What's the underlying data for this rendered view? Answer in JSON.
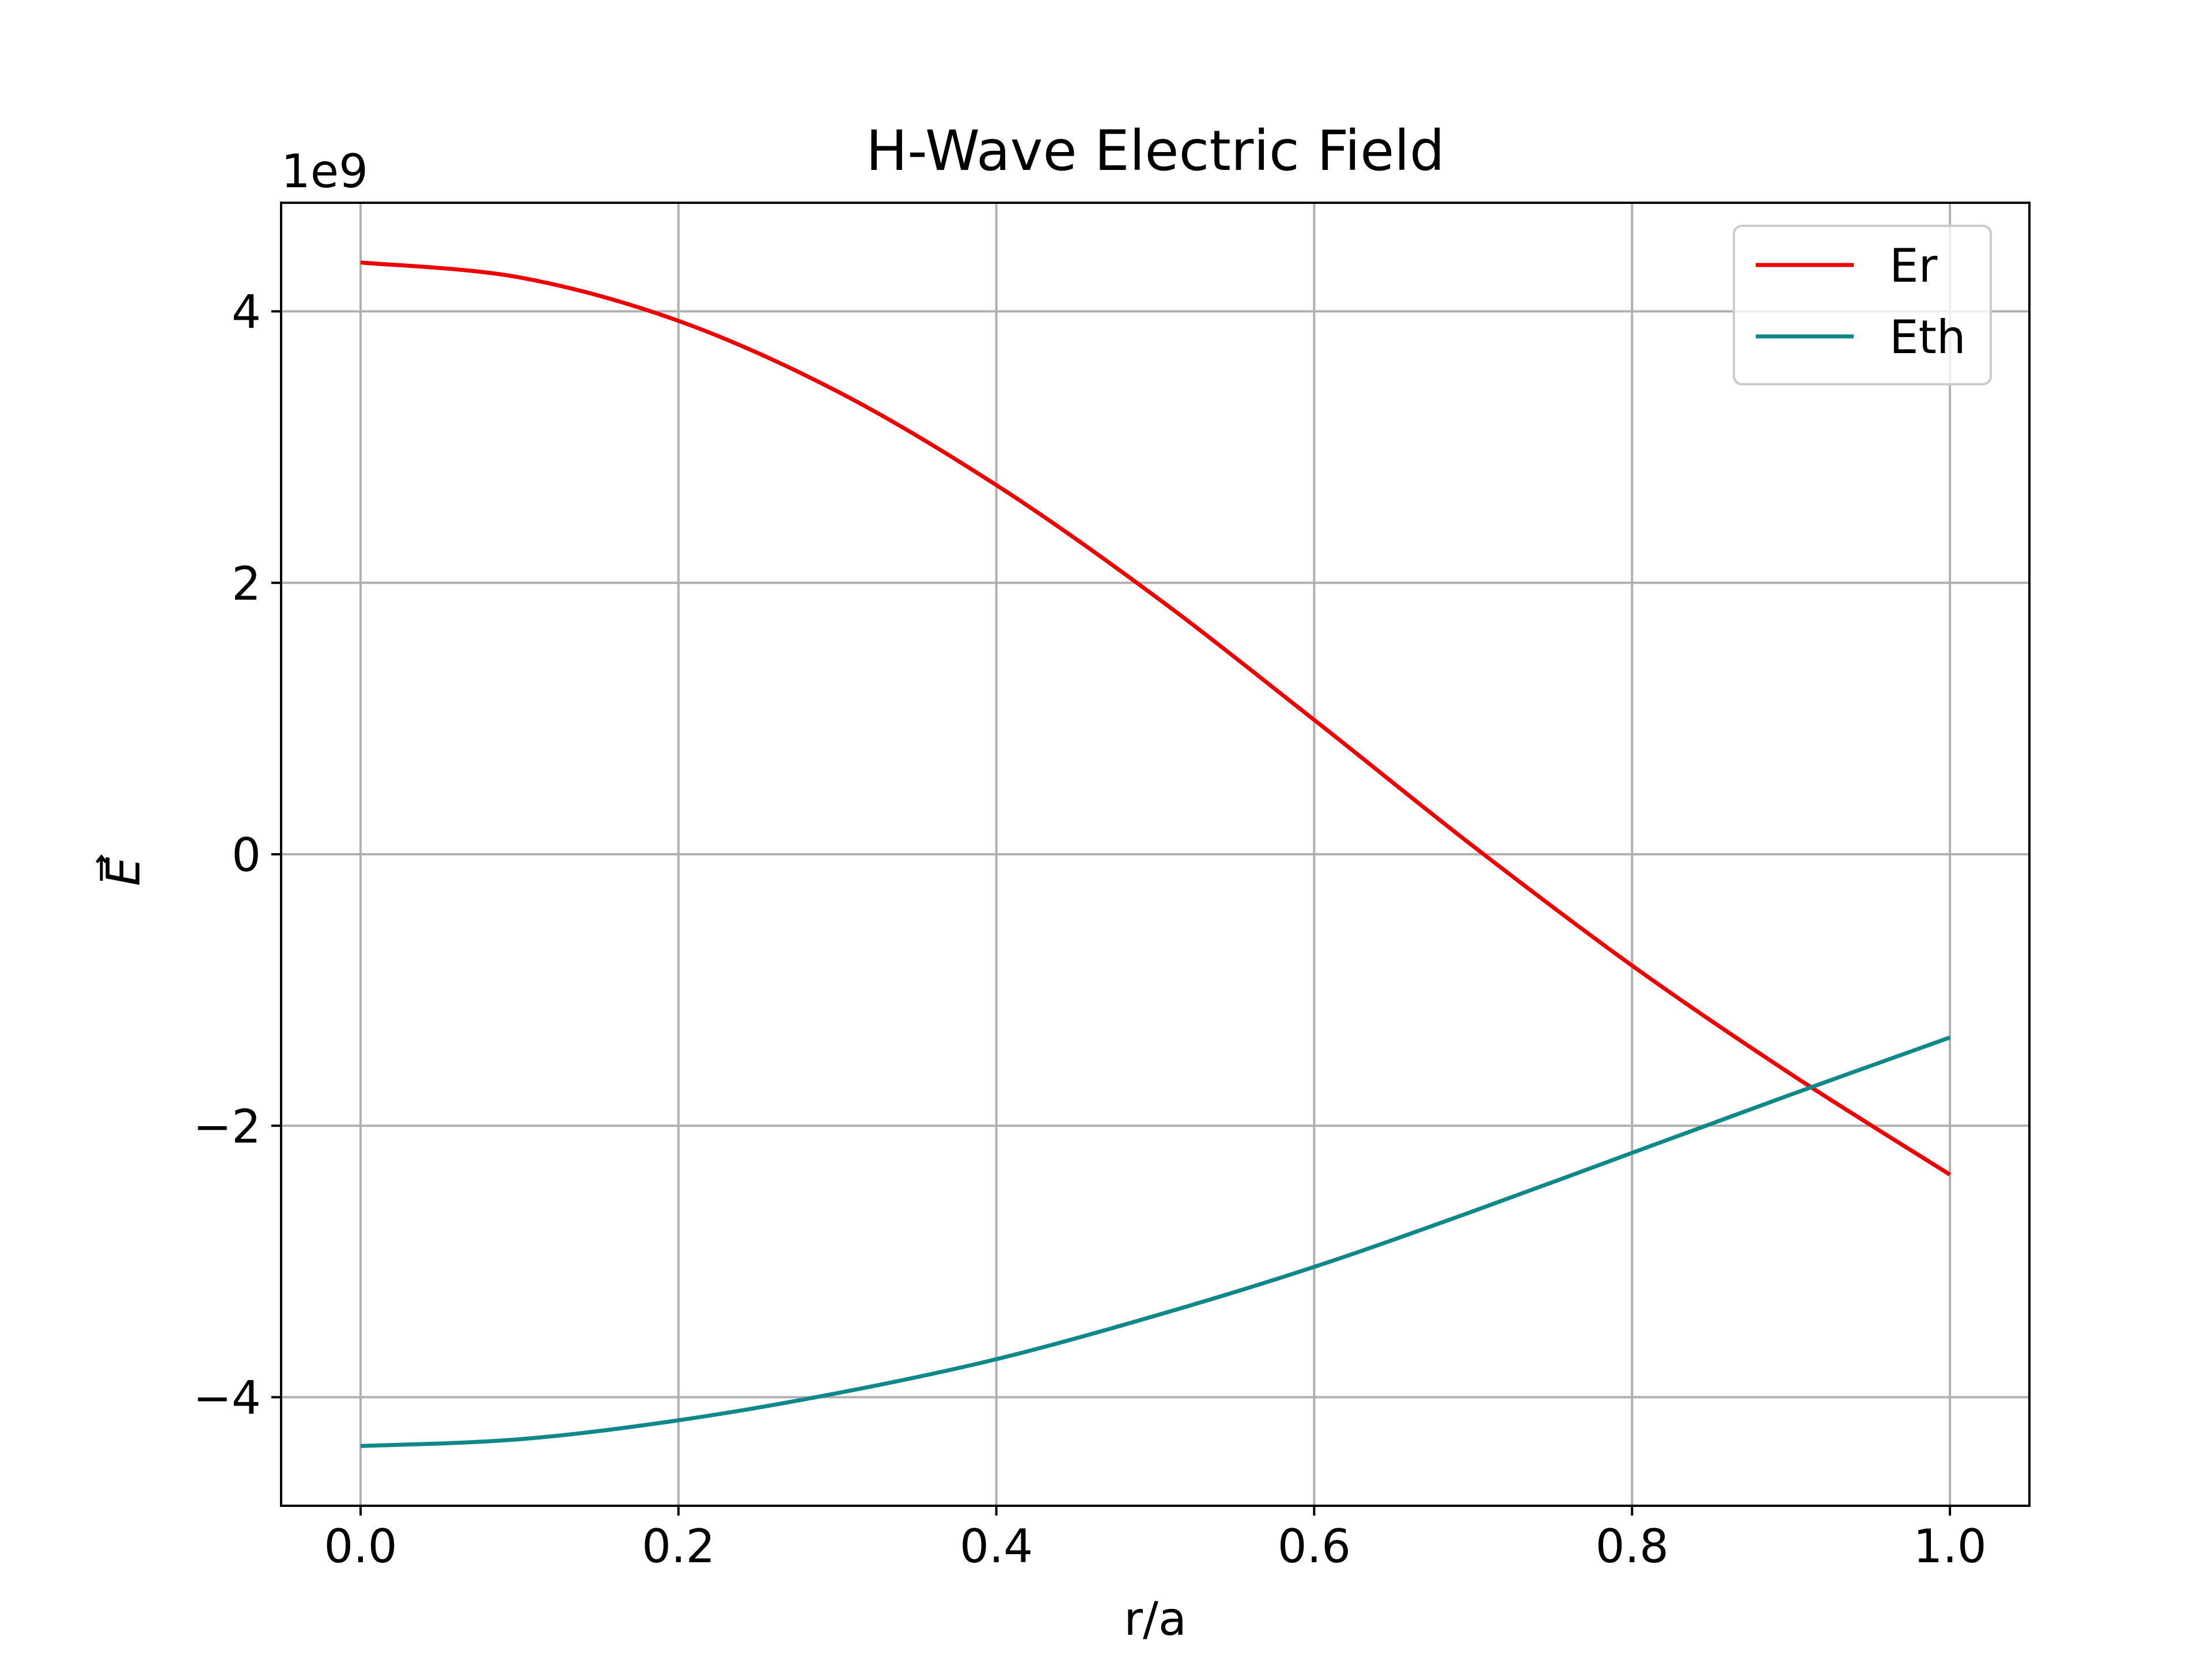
{
  "chart_data": {
    "type": "line",
    "title": "H-Wave Electric Field",
    "xlabel": "r/a",
    "ylabel": "E",
    "ylabel_decoration": "vector-arrow",
    "offset_text": "1e9",
    "xlim": [
      -0.05,
      1.05
    ],
    "ylim": [
      -4.8,
      4.8
    ],
    "xticks": [
      0.0,
      0.2,
      0.4,
      0.6,
      0.8,
      1.0
    ],
    "xtick_labels": [
      "0.0",
      "0.2",
      "0.4",
      "0.6",
      "0.8",
      "1.0"
    ],
    "yticks": [
      -4,
      -2,
      0,
      2,
      4
    ],
    "ytick_labels": [
      "−4",
      "−2",
      "0",
      "2",
      "4"
    ],
    "grid": true,
    "legend_position": "top-right",
    "x": [
      0.0,
      0.1,
      0.2,
      0.3,
      0.4,
      0.5,
      0.6,
      0.7,
      0.8,
      0.9,
      1.0
    ],
    "series": [
      {
        "name": "Er",
        "color": "#ee0000",
        "values": [
          4.36,
          4.25,
          3.93,
          3.41,
          2.72,
          1.9,
          0.99,
          0.06,
          -0.82,
          -1.62,
          -2.36
        ]
      },
      {
        "name": "Eth",
        "color": "#10888a",
        "values": [
          -4.36,
          -4.31,
          -4.17,
          -3.97,
          -3.72,
          -3.4,
          -3.04,
          -2.63,
          -2.2,
          -1.77,
          -1.35
        ]
      }
    ]
  }
}
